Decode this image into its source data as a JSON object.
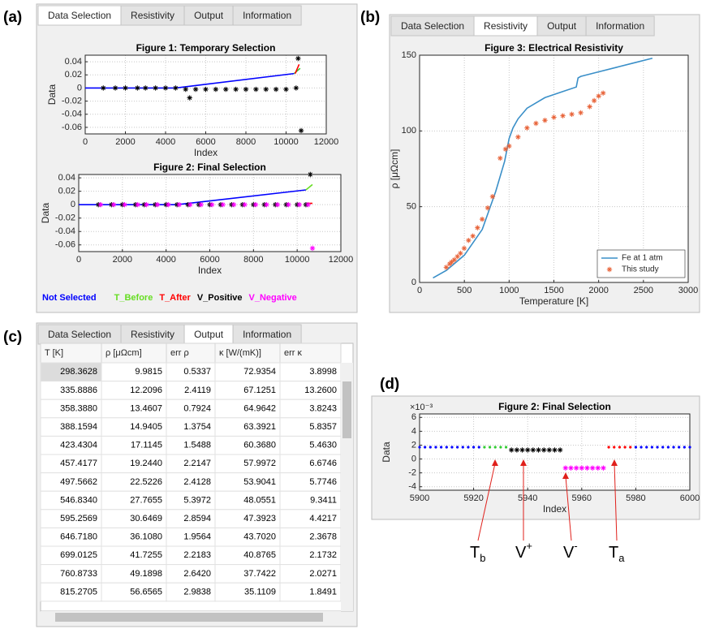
{
  "panels": [
    {
      "label": "(a)",
      "tabs": [
        "Data Selection",
        "Resistivity",
        "Output",
        "Information"
      ],
      "active_tab": 0
    },
    {
      "label": "(b)",
      "tabs": [
        "Data Selection",
        "Resistivity",
        "Output",
        "Information"
      ],
      "active_tab": 1
    },
    {
      "label": "(c)",
      "tabs": [
        "Data Selection",
        "Resistivity",
        "Output",
        "Information"
      ],
      "active_tab": 2
    },
    {
      "label": "(d)"
    }
  ],
  "chart_data": [
    {
      "type": "line",
      "title": "Figure 1: Temporary Selection",
      "xlabel": "Index",
      "ylabel": "Data",
      "xlim": [
        0,
        12000
      ],
      "xticks": [
        0,
        2000,
        4000,
        6000,
        8000,
        10000,
        12000
      ],
      "ylim": [
        -0.07,
        0.05
      ],
      "yticks": [
        -0.06,
        -0.04,
        -0.02,
        0,
        0.02,
        0.04
      ],
      "grid": true,
      "series": [
        {
          "color": "#0000ff",
          "mode": "line",
          "x": [
            0,
            4500,
            10400
          ],
          "values": [
            0,
            0,
            0.022
          ]
        },
        {
          "color": "#33cc33",
          "mode": "line",
          "x": [
            10400,
            10700
          ],
          "values": [
            0.022,
            0.03
          ]
        },
        {
          "color": "#ff0000",
          "mode": "line",
          "x": [
            10450,
            10650
          ],
          "values": [
            0.022,
            0.036
          ]
        },
        {
          "color": "#000000",
          "mode": "markers",
          "marker": "star",
          "x": [
            900,
            1500,
            2000,
            2600,
            3000,
            3500,
            4000,
            4500,
            5000,
            5200,
            5500,
            6000,
            6500,
            7000,
            7500,
            8000,
            8500,
            9000,
            9500,
            10000,
            10500,
            10600,
            10750
          ],
          "values": [
            0,
            0,
            0,
            0,
            0,
            0,
            0,
            0,
            -0.002,
            -0.015,
            -0.002,
            -0.002,
            -0.002,
            -0.002,
            -0.002,
            -0.002,
            -0.002,
            -0.002,
            -0.002,
            -0.002,
            0,
            0.045,
            -0.065
          ]
        }
      ]
    },
    {
      "type": "line",
      "title": "Figure 2: Final Selection",
      "xlabel": "Index",
      "ylabel": "Data",
      "xlim": [
        0,
        12000
      ],
      "xticks": [
        0,
        2000,
        4000,
        6000,
        8000,
        10000,
        12000
      ],
      "ylim": [
        -0.07,
        0.045
      ],
      "yticks": [
        -0.06,
        -0.04,
        -0.02,
        0,
        0.02,
        0.04
      ],
      "grid": true,
      "legend": "below",
      "series": [
        {
          "name": "Not Selected",
          "color": "#0000ff",
          "mode": "line",
          "x": [
            0,
            4500,
            10400
          ],
          "values": [
            0,
            0,
            0.022
          ]
        },
        {
          "name": "T_Before",
          "color": "#66dd22",
          "mode": "line",
          "x": [
            10400,
            10700
          ],
          "values": [
            0.022,
            0.03
          ]
        },
        {
          "name": "T_After",
          "color": "#ff0000",
          "mode": "line",
          "x": [
            10450,
            10700
          ],
          "values": [
            0.002,
            0.002
          ]
        },
        {
          "name": "V_Positive",
          "color": "#000000",
          "mode": "markers",
          "marker": "star",
          "x": [
            900,
            1500,
            2000,
            2600,
            3000,
            3500,
            4000,
            4500,
            5000,
            5500,
            6000,
            6500,
            7000,
            7500,
            8000,
            8500,
            9000,
            9500,
            10000,
            10400,
            10600
          ],
          "values": [
            0,
            0,
            0,
            0,
            0,
            0,
            0,
            0,
            0,
            0,
            0,
            0,
            0,
            0,
            0,
            0,
            0,
            0,
            0,
            0,
            0.045
          ]
        },
        {
          "name": "V_Negative",
          "color": "#ff00ff",
          "mode": "markers",
          "marker": "star",
          "x": [
            1000,
            1600,
            2100,
            2700,
            3100,
            3600,
            4100,
            4600,
            5100,
            5600,
            6100,
            6600,
            7100,
            7600,
            8100,
            8600,
            9100,
            9600,
            10100,
            10500,
            10700
          ],
          "values": [
            0,
            0,
            0,
            0,
            0,
            0,
            0,
            0,
            0,
            0,
            0,
            0,
            0,
            0,
            0,
            0,
            0,
            0,
            0,
            0,
            -0.065
          ]
        }
      ]
    },
    {
      "type": "line",
      "title": "Figure 3: Electrical Resistivity",
      "xlabel": "Temperature [K]",
      "ylabel": "ρ [μΩcm]",
      "xlim": [
        0,
        3000
      ],
      "xticks": [
        0,
        500,
        1000,
        1500,
        2000,
        2500,
        3000
      ],
      "ylim": [
        0,
        150
      ],
      "yticks": [
        0,
        50,
        100,
        150
      ],
      "grid": true,
      "legend": "lower right",
      "series": [
        {
          "name": "Fe at 1 atm",
          "color": "#3a8fc8",
          "mode": "line",
          "x": [
            150,
            300,
            500,
            700,
            850,
            950,
            1000,
            1043,
            1100,
            1200,
            1400,
            1600,
            1750,
            1770,
            1800,
            2000,
            2200,
            2400,
            2600
          ],
          "values": [
            3,
            8,
            18,
            35,
            60,
            80,
            95,
            102,
            108,
            115,
            122,
            126,
            129,
            135,
            136,
            139,
            142,
            145,
            148
          ]
        },
        {
          "name": "This study",
          "color": "#e8643a",
          "mode": "markers",
          "marker": "star",
          "x": [
            298,
            336,
            358,
            388,
            423,
            457,
            498,
            547,
            595,
            647,
            699,
            761,
            815,
            900,
            960,
            1000,
            1100,
            1200,
            1300,
            1400,
            1500,
            1600,
            1700,
            1800,
            1900,
            1950,
            2000,
            2050
          ],
          "values": [
            9.98,
            12.2,
            13.46,
            14.94,
            17.11,
            19.24,
            22.52,
            27.77,
            30.65,
            36.1,
            41.73,
            49.19,
            56.66,
            82,
            88,
            90,
            96,
            102,
            105,
            107,
            109,
            110,
            111,
            112,
            116,
            120,
            123,
            125
          ]
        }
      ]
    },
    {
      "type": "scatter",
      "title": "Figure 2: Final Selection",
      "xlabel": "Index",
      "ylabel": "Data",
      "y_exponent": "×10⁻³",
      "xlim": [
        5900,
        6000
      ],
      "xticks": [
        5900,
        5920,
        5940,
        5960,
        5980,
        6000
      ],
      "ylim": [
        -4.5,
        6.5
      ],
      "yticks": [
        -4,
        -2,
        0,
        2,
        4,
        6
      ],
      "grid": true,
      "series": [
        {
          "color": "#0000ff",
          "mode": "markers",
          "marker": "dot",
          "x": [
            5900,
            5902,
            5904,
            5906,
            5908,
            5910,
            5912,
            5914,
            5916,
            5918,
            5920,
            5922
          ],
          "values": [
            1.7,
            1.7,
            1.7,
            1.7,
            1.7,
            1.7,
            1.7,
            1.7,
            1.7,
            1.7,
            1.7,
            1.7
          ]
        },
        {
          "color": "#33cc33",
          "mode": "markers",
          "marker": "dot",
          "x": [
            5924,
            5926,
            5928,
            5930,
            5932
          ],
          "values": [
            1.7,
            1.7,
            1.7,
            1.7,
            1.7
          ]
        },
        {
          "color": "#000000",
          "mode": "markers",
          "marker": "star",
          "x": [
            5934,
            5936,
            5938,
            5940,
            5942,
            5944,
            5946,
            5948,
            5950,
            5952
          ],
          "values": [
            1.3,
            1.3,
            1.3,
            1.3,
            1.3,
            1.3,
            1.3,
            1.3,
            1.3,
            1.3
          ]
        },
        {
          "color": "#ff00ff",
          "mode": "markers",
          "marker": "star",
          "x": [
            5954,
            5956,
            5958,
            5960,
            5962,
            5964,
            5966,
            5968
          ],
          "values": [
            -1.3,
            -1.3,
            -1.3,
            -1.3,
            -1.3,
            -1.3,
            -1.3,
            -1.3
          ]
        },
        {
          "color": "#ff0000",
          "mode": "markers",
          "marker": "dot",
          "x": [
            5970,
            5972,
            5974,
            5976,
            5978
          ],
          "values": [
            1.7,
            1.7,
            1.7,
            1.7,
            1.7
          ]
        },
        {
          "color": "#0000ff",
          "mode": "markers",
          "marker": "dot",
          "x": [
            5980,
            5982,
            5984,
            5986,
            5988,
            5990,
            5992,
            5994,
            5996,
            5998,
            6000
          ],
          "values": [
            1.7,
            1.7,
            1.7,
            1.7,
            1.7,
            1.7,
            1.7,
            1.7,
            1.7,
            1.7,
            1.7
          ]
        }
      ],
      "annotations": [
        {
          "text": "T",
          "script": "b",
          "script_type": "sub"
        },
        {
          "text": "V",
          "script": "+",
          "script_type": "super"
        },
        {
          "text": "V",
          "script": "-",
          "script_type": "super"
        },
        {
          "text": "T",
          "script": "a",
          "script_type": "sub"
        }
      ]
    }
  ],
  "table": {
    "headers": [
      "T [K]",
      "ρ [μΩcm]",
      "err ρ",
      "κ [W/(mK)]",
      "err κ"
    ],
    "rows": [
      [
        "298.3628",
        "9.9815",
        "0.5337",
        "72.9354",
        "3.8998"
      ],
      [
        "335.8886",
        "12.2096",
        "2.4119",
        "67.1251",
        "13.2600"
      ],
      [
        "358.3880",
        "13.4607",
        "0.7924",
        "64.9642",
        "3.8243"
      ],
      [
        "388.1594",
        "14.9405",
        "1.3754",
        "63.3921",
        "5.8357"
      ],
      [
        "423.4304",
        "17.1145",
        "1.5488",
        "60.3680",
        "5.4630"
      ],
      [
        "457.4177",
        "19.2440",
        "2.2147",
        "57.9972",
        "6.6746"
      ],
      [
        "497.5662",
        "22.5226",
        "2.4128",
        "53.9041",
        "5.7746"
      ],
      [
        "546.8340",
        "27.7655",
        "5.3972",
        "48.0551",
        "9.3411"
      ],
      [
        "595.2569",
        "30.6469",
        "2.8594",
        "47.3923",
        "4.4217"
      ],
      [
        "646.7180",
        "36.1080",
        "1.9564",
        "43.7020",
        "2.3678"
      ],
      [
        "699.0125",
        "41.7255",
        "2.2183",
        "40.8765",
        "2.1732"
      ],
      [
        "760.8733",
        "49.1898",
        "2.6420",
        "37.7422",
        "2.0271"
      ],
      [
        "815.2705",
        "56.6565",
        "2.9838",
        "35.1109",
        "1.8491"
      ]
    ]
  }
}
